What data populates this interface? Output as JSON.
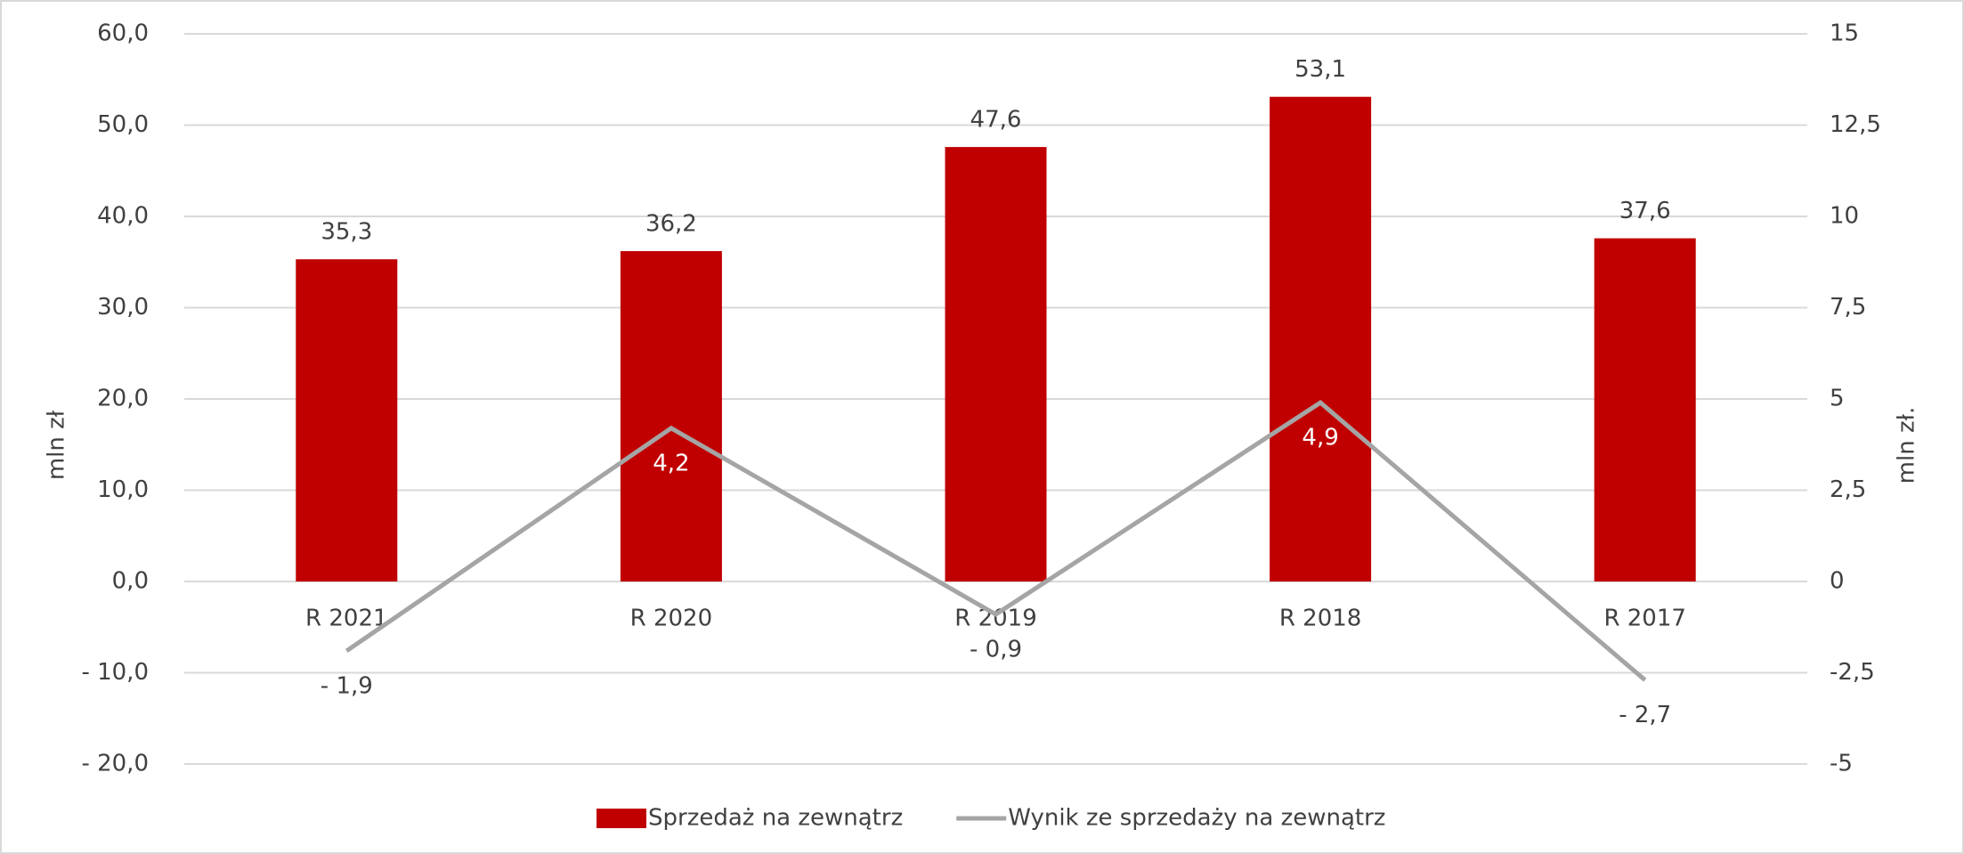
{
  "chart_data": {
    "type": "bar",
    "categories": [
      "R 2021",
      "R 2020",
      "R 2019",
      "R 2018",
      "R 2017"
    ],
    "series": [
      {
        "name": "Sprzedaż na zewnątrz",
        "color": "#c00000",
        "values": [
          35.3,
          36.2,
          47.6,
          53.1,
          37.6
        ],
        "value_labels": [
          "35,3",
          "36,2",
          "47,6",
          "53,1",
          "37,6"
        ]
      },
      {
        "name": "Wynik ze sprzedaży na zewnątrz",
        "type": "line",
        "axis": "y2",
        "color": "#a5a5a5",
        "values": [
          -1.9,
          4.2,
          -0.9,
          4.9,
          -2.7
        ],
        "value_labels": [
          "- 1,9",
          "4,2",
          "- 0,9",
          "4,9",
          "- 2,7"
        ]
      }
    ],
    "ylabel": "mln zł",
    "y2label": "mln zł.",
    "ylim": [
      -20,
      60
    ],
    "yticks": [
      {
        "value": -20,
        "label": "- 20,0"
      },
      {
        "value": -10,
        "label": "- 10,0"
      },
      {
        "value": 0,
        "label": "0,0"
      },
      {
        "value": 10,
        "label": "10,0"
      },
      {
        "value": 20,
        "label": "20,0"
      },
      {
        "value": 30,
        "label": "30,0"
      },
      {
        "value": 40,
        "label": "40,0"
      },
      {
        "value": 50,
        "label": "50,0"
      },
      {
        "value": 60,
        "label": "60,0"
      }
    ],
    "y2lim": [
      -5,
      15
    ],
    "y2ticks": [
      -5,
      {
        "value": -2.5,
        "label": "-2,5"
      },
      0,
      {
        "value": 2.5,
        "label": "2,5"
      },
      5,
      {
        "value": 7.5,
        "label": "7,5"
      },
      10,
      {
        "value": 12.5,
        "label": "12,5"
      },
      15
    ],
    "grid": true,
    "legend": "bottom"
  }
}
